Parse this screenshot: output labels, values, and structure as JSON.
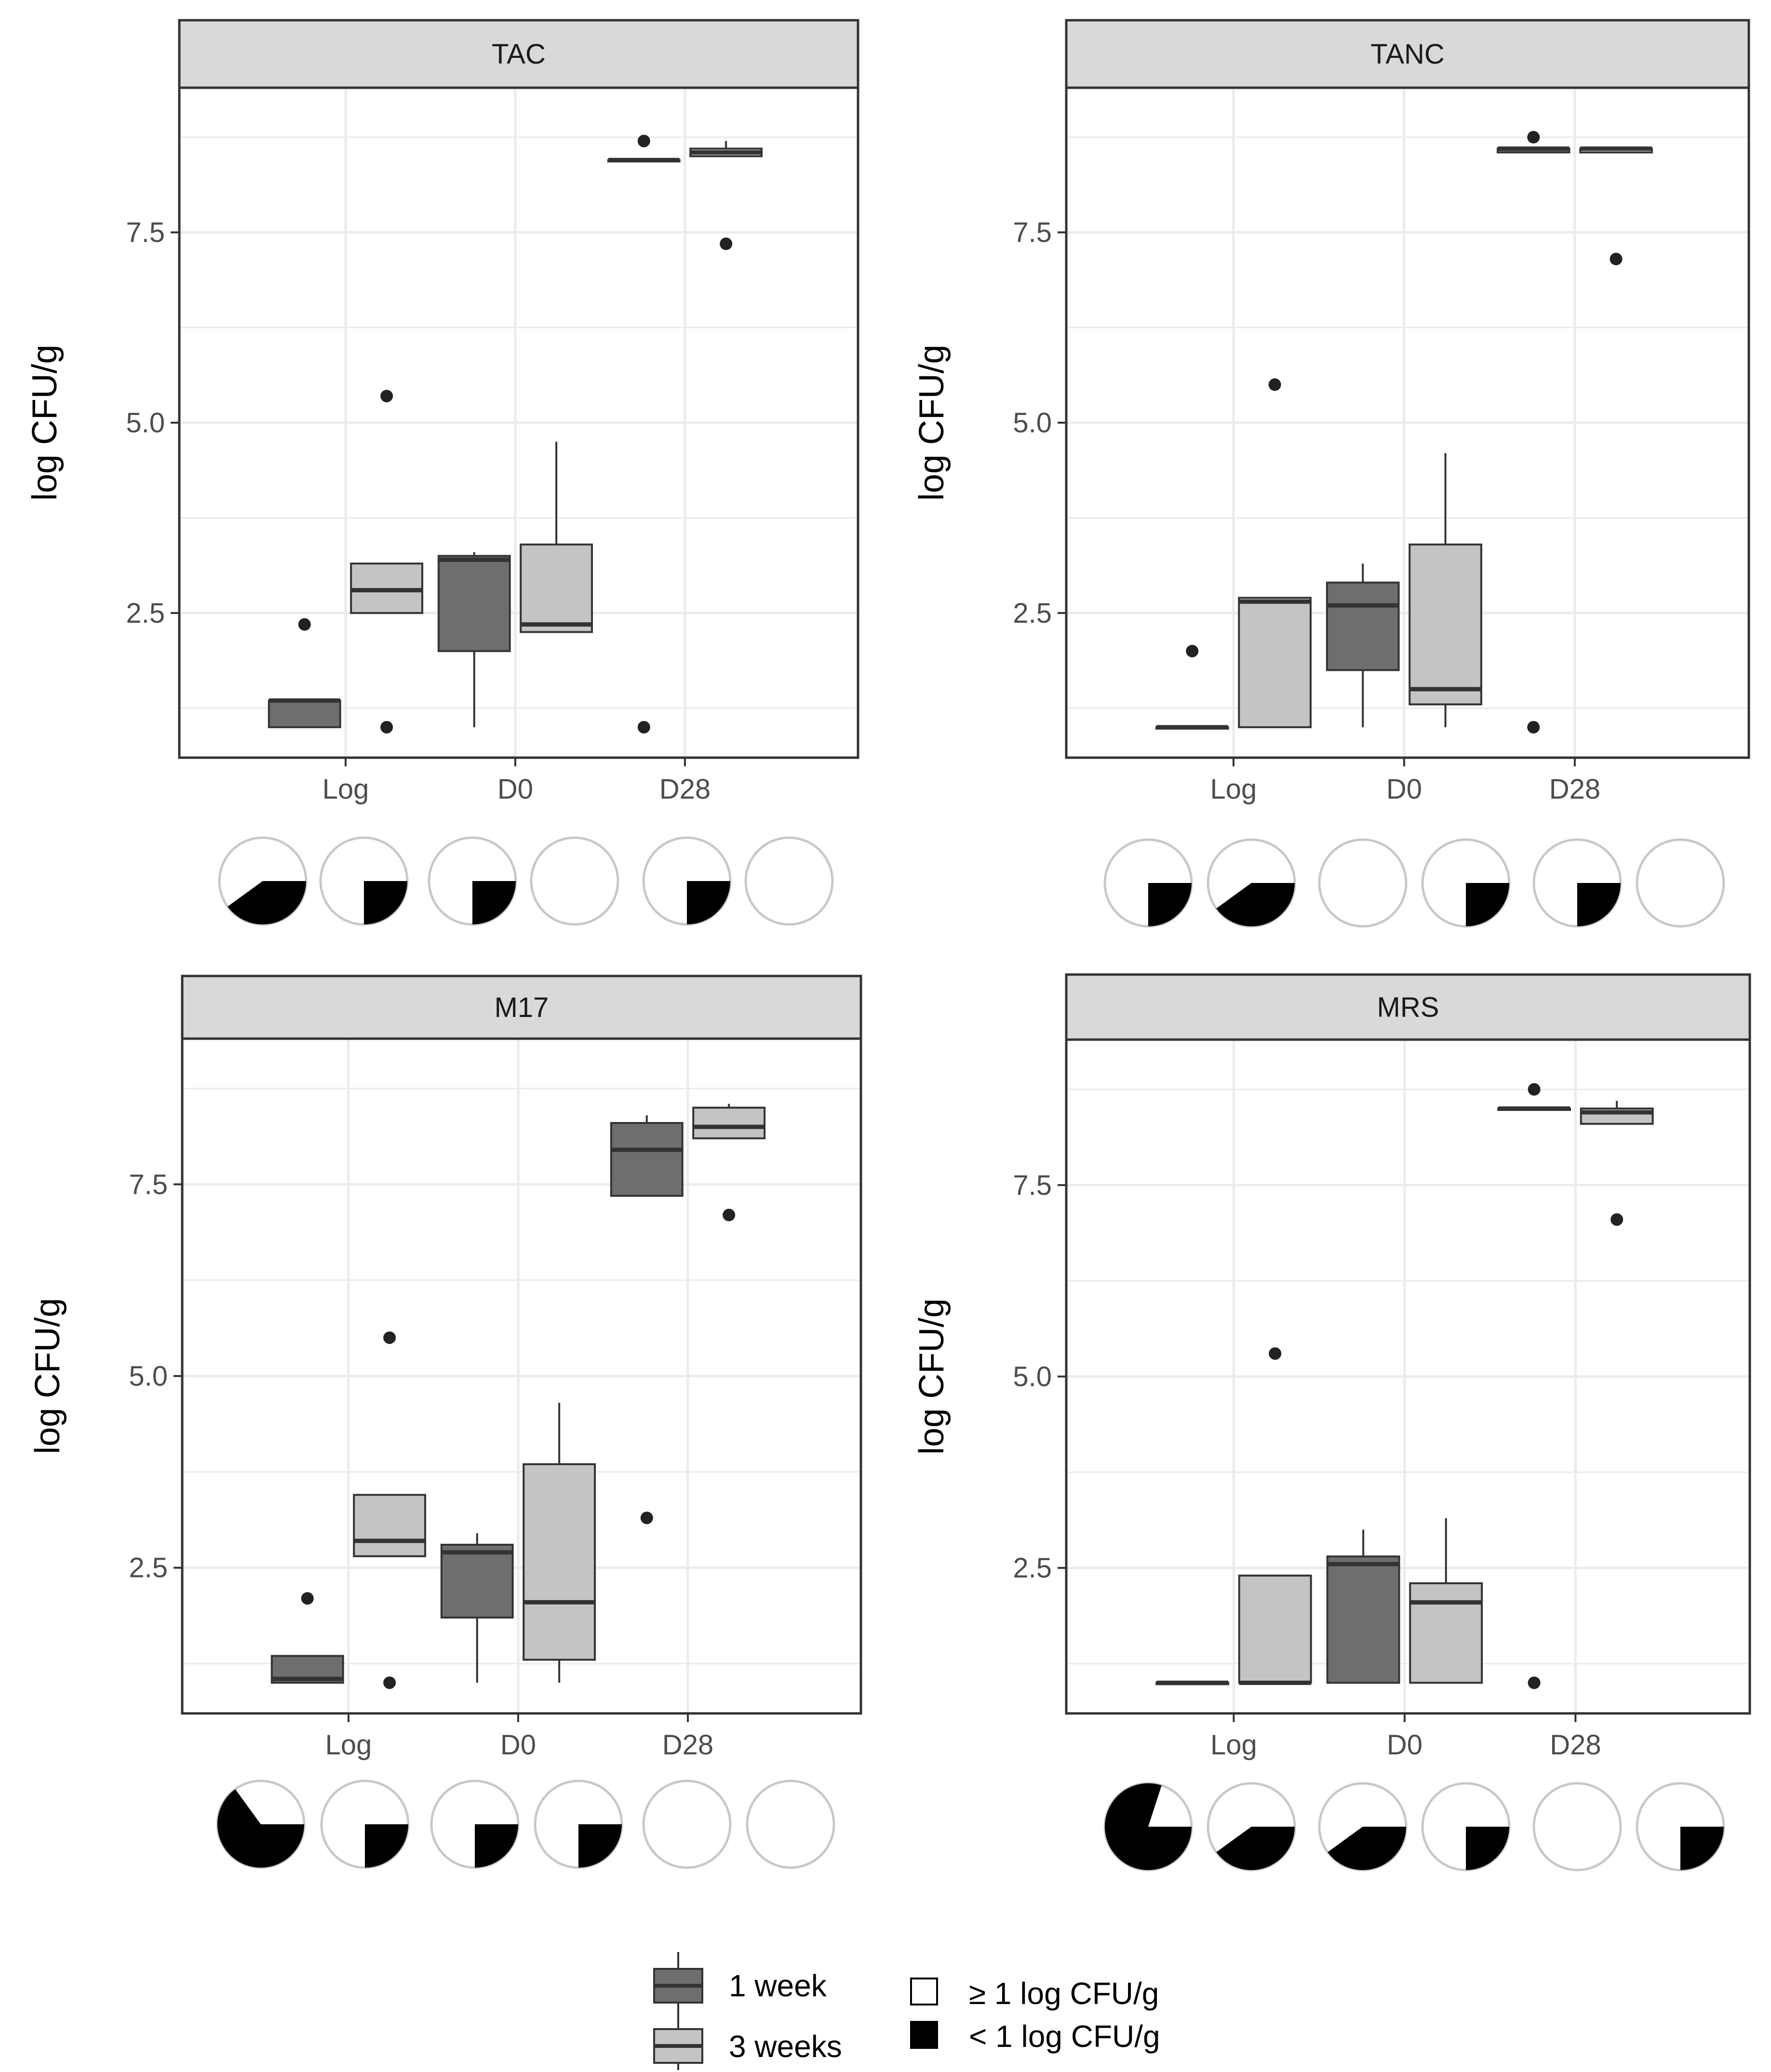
{
  "colors": {
    "week1": "#6e6e6e",
    "week3": "#c4c4c4",
    "strip": "#d9d9d9",
    "grid": "#ebebeb",
    "outline": "#333333",
    "pie_border": "#c8c8c8"
  },
  "legend": {
    "groups": [
      "1 week",
      "3 weeks"
    ],
    "pie_items": [
      "≥ 1 log CFU/g",
      "< 1 log CFU/g"
    ]
  },
  "chart_data": [
    {
      "type": "boxplot",
      "title": "TAC",
      "ylabel": "log CFU/g",
      "ylim": [
        0.6,
        9.4
      ],
      "yticks": [
        2.5,
        5.0,
        7.5
      ],
      "yticks_labels": [
        "2.5",
        "5.0",
        "7.5"
      ],
      "categories": [
        "Log",
        "D0",
        "D28"
      ],
      "series": [
        {
          "name": "1 week",
          "boxes": [
            {
              "lower": 1.0,
              "q1": 1.0,
              "median": 1.35,
              "q3": 1.35,
              "upper": 1.35,
              "outliers": [
                2.35
              ]
            },
            {
              "lower": 1.0,
              "q1": 2.0,
              "median": 3.2,
              "q3": 3.25,
              "upper": 3.3,
              "outliers": []
            },
            {
              "lower": 8.45,
              "q1": 8.45,
              "median": 8.45,
              "q3": 8.45,
              "upper": 8.45,
              "outliers": [
                8.7,
                1.0
              ]
            }
          ]
        },
        {
          "name": "3 weeks",
          "boxes": [
            {
              "lower": 2.5,
              "q1": 2.5,
              "median": 2.8,
              "q3": 3.15,
              "upper": 3.15,
              "outliers": [
                5.35,
                1.0
              ]
            },
            {
              "lower": 2.25,
              "q1": 2.25,
              "median": 2.35,
              "q3": 3.4,
              "upper": 4.75,
              "outliers": []
            },
            {
              "lower": 8.5,
              "q1": 8.5,
              "median": 8.55,
              "q3": 8.6,
              "upper": 8.7,
              "outliers": [
                7.35
              ]
            }
          ]
        }
      ],
      "pies_below_1log_fraction": [
        0.4,
        0.25,
        0.25,
        0.0,
        0.25,
        0.0
      ]
    },
    {
      "type": "boxplot",
      "title": "TANC",
      "ylabel": "log CFU/g",
      "ylim": [
        0.6,
        9.4
      ],
      "yticks": [
        2.5,
        5.0,
        7.5
      ],
      "yticks_labels": [
        "2.5",
        "5.0",
        "7.5"
      ],
      "categories": [
        "Log",
        "D0",
        "D28"
      ],
      "series": [
        {
          "name": "1 week",
          "boxes": [
            {
              "lower": 1.0,
              "q1": 1.0,
              "median": 1.0,
              "q3": 1.0,
              "upper": 1.0,
              "outliers": [
                2.0
              ]
            },
            {
              "lower": 1.0,
              "q1": 1.75,
              "median": 2.6,
              "q3": 2.9,
              "upper": 3.15,
              "outliers": []
            },
            {
              "lower": 8.55,
              "q1": 8.55,
              "median": 8.6,
              "q3": 8.6,
              "upper": 8.6,
              "outliers": [
                8.75,
                1.0
              ]
            }
          ]
        },
        {
          "name": "3 weeks",
          "boxes": [
            {
              "lower": 1.0,
              "q1": 1.0,
              "median": 2.65,
              "q3": 2.7,
              "upper": 2.7,
              "outliers": [
                5.5
              ]
            },
            {
              "lower": 1.0,
              "q1": 1.3,
              "median": 1.5,
              "q3": 3.4,
              "upper": 4.6,
              "outliers": []
            },
            {
              "lower": 8.55,
              "q1": 8.55,
              "median": 8.6,
              "q3": 8.6,
              "upper": 8.6,
              "outliers": [
                7.15
              ]
            }
          ]
        }
      ],
      "pies_below_1log_fraction": [
        0.25,
        0.4,
        0.0,
        0.25,
        0.25,
        0.0
      ]
    },
    {
      "type": "boxplot",
      "title": "M17",
      "ylabel": "log CFU/g",
      "ylim": [
        0.6,
        9.4
      ],
      "yticks": [
        2.5,
        5.0,
        7.5
      ],
      "yticks_labels": [
        "2.5",
        "5.0",
        "7.5"
      ],
      "categories": [
        "Log",
        "D0",
        "D28"
      ],
      "series": [
        {
          "name": "1 week",
          "boxes": [
            {
              "lower": 1.0,
              "q1": 1.0,
              "median": 1.05,
              "q3": 1.35,
              "upper": 1.35,
              "outliers": [
                2.1
              ]
            },
            {
              "lower": 1.0,
              "q1": 1.85,
              "median": 2.7,
              "q3": 2.8,
              "upper": 2.95,
              "outliers": []
            },
            {
              "lower": 7.35,
              "q1": 7.35,
              "median": 7.95,
              "q3": 8.3,
              "upper": 8.4,
              "outliers": [
                3.15
              ]
            }
          ]
        },
        {
          "name": "3 weeks",
          "boxes": [
            {
              "lower": 2.65,
              "q1": 2.65,
              "median": 2.85,
              "q3": 3.45,
              "upper": 3.45,
              "outliers": [
                5.5,
                1.0
              ]
            },
            {
              "lower": 1.0,
              "q1": 1.3,
              "median": 2.05,
              "q3": 3.85,
              "upper": 4.65,
              "outliers": []
            },
            {
              "lower": 8.1,
              "q1": 8.1,
              "median": 8.25,
              "q3": 8.5,
              "upper": 8.55,
              "outliers": [
                7.1
              ]
            }
          ]
        }
      ],
      "pies_below_1log_fraction": [
        0.65,
        0.25,
        0.25,
        0.25,
        0.0,
        0.0
      ]
    },
    {
      "type": "boxplot",
      "title": "MRS",
      "ylabel": "log CFU/g",
      "ylim": [
        0.6,
        9.4
      ],
      "yticks": [
        2.5,
        5.0,
        7.5
      ],
      "yticks_labels": [
        "2.5",
        "5.0",
        "7.5"
      ],
      "categories": [
        "Log",
        "D0",
        "D28"
      ],
      "series": [
        {
          "name": "1 week",
          "boxes": [
            {
              "lower": 1.0,
              "q1": 1.0,
              "median": 1.0,
              "q3": 1.0,
              "upper": 1.0,
              "outliers": []
            },
            {
              "lower": 1.0,
              "q1": 1.0,
              "median": 2.55,
              "q3": 2.65,
              "upper": 3.0,
              "outliers": []
            },
            {
              "lower": 8.5,
              "q1": 8.5,
              "median": 8.5,
              "q3": 8.5,
              "upper": 8.5,
              "outliers": [
                8.75,
                1.0
              ]
            }
          ]
        },
        {
          "name": "3 weeks",
          "boxes": [
            {
              "lower": 1.0,
              "q1": 1.0,
              "median": 1.0,
              "q3": 2.4,
              "upper": 2.4,
              "outliers": [
                5.3
              ]
            },
            {
              "lower": 1.0,
              "q1": 1.0,
              "median": 2.05,
              "q3": 2.3,
              "upper": 3.15,
              "outliers": []
            },
            {
              "lower": 8.3,
              "q1": 8.3,
              "median": 8.45,
              "q3": 8.5,
              "upper": 8.6,
              "outliers": [
                7.05
              ]
            }
          ]
        }
      ],
      "pies_below_1log_fraction": [
        0.8,
        0.4,
        0.4,
        0.25,
        0.0,
        0.25
      ]
    }
  ]
}
